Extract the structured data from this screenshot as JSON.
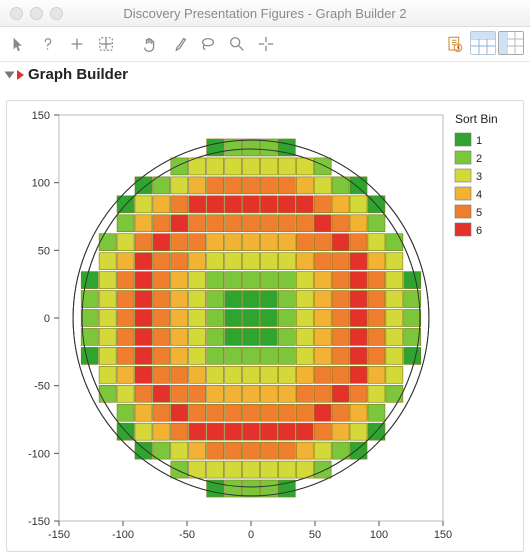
{
  "window": {
    "title": "Discovery Presentation Figures - Graph Builder 2"
  },
  "traffic": {
    "close": "close",
    "min": "minimize",
    "max": "maximize"
  },
  "toolbar": {
    "icons": [
      "pointer",
      "help",
      "plus-move",
      "zoom-region",
      "pan-hand",
      "brush",
      "lasso",
      "magnifier",
      "crosshair"
    ],
    "right_icons": [
      "recall-script",
      "data-table-blue",
      "data-table-grey"
    ]
  },
  "report": {
    "title": "Graph Builder"
  },
  "chart": {
    "type": "heatmap",
    "axis": {
      "x": {
        "min": -150,
        "max": 150,
        "ticks": [
          -150,
          -100,
          -50,
          0,
          50,
          100,
          150
        ]
      },
      "y": {
        "min": -150,
        "max": 150,
        "ticks": [
          -150,
          -100,
          -50,
          0,
          50,
          100,
          150
        ]
      }
    },
    "cell_step": 14,
    "cell_size": 13.3,
    "circle_radii": [
      139,
      132
    ],
    "circle_stroke": "#333333",
    "legend": {
      "title": "Sort Bin",
      "items": [
        {
          "label": "1",
          "color": "#2fa52f"
        },
        {
          "label": "2",
          "color": "#7cc63c"
        },
        {
          "label": "3",
          "color": "#d4d93a"
        },
        {
          "label": "4",
          "color": "#f2b233"
        },
        {
          "label": "5",
          "color": "#ef7e2e"
        },
        {
          "label": "6",
          "color": "#e4322b"
        }
      ]
    },
    "bin_thresholds": [
      30,
      55,
      75,
      95,
      118
    ],
    "background": "#ffffff",
    "grid_color": "#e6e6e6"
  }
}
